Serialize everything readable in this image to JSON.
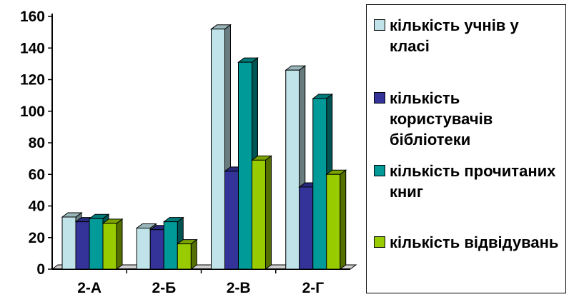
{
  "chart_data": {
    "type": "bar",
    "categories": [
      "2-А",
      "2-Б",
      "2-В",
      "2-Г"
    ],
    "series": [
      {
        "name": "кількість учнів у класі",
        "color": "#bfe3e8",
        "values": [
          33,
          26,
          152,
          126
        ]
      },
      {
        "name": "кількість користувачів бібліотеки",
        "color": "#33339a",
        "values": [
          30,
          25,
          62,
          52
        ]
      },
      {
        "name": "кількість прочитаних книг",
        "color": "#009a99",
        "values": [
          32,
          30,
          131,
          108
        ]
      },
      {
        "name": "кількість відвідувань",
        "color": "#99cc00",
        "values": [
          29,
          16,
          69,
          60
        ]
      }
    ],
    "yticks": [
      "0",
      "20",
      "40",
      "60",
      "80",
      "100",
      "120",
      "140",
      "160"
    ],
    "ylim": [
      0,
      160
    ],
    "grid": false,
    "legend_position": "right"
  }
}
